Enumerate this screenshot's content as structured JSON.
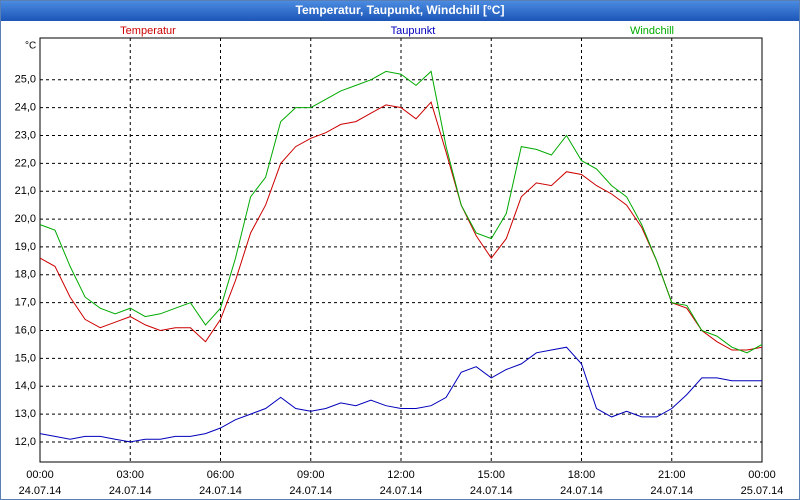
{
  "chart_data": {
    "type": "line",
    "title": "Temperatur, Taupunkt, Windchill [°C]",
    "y_unit": "°C",
    "x": [
      0,
      0.5,
      1,
      1.5,
      2,
      2.5,
      3,
      3.5,
      4,
      4.5,
      5,
      5.5,
      6,
      6.5,
      7,
      7.5,
      8,
      8.5,
      9,
      9.5,
      10,
      10.5,
      11,
      11.5,
      12,
      12.5,
      13,
      13.5,
      14,
      14.5,
      15,
      15.5,
      16,
      16.5,
      17,
      17.5,
      18,
      18.5,
      19,
      19.5,
      20,
      20.5,
      21,
      21.5,
      22,
      22.5,
      23,
      23.5,
      24
    ],
    "series": [
      {
        "name": "Temperatur",
        "color": "#cc0000",
        "values": [
          18.6,
          18.3,
          17.2,
          16.4,
          16.1,
          16.3,
          16.5,
          16.2,
          16.0,
          16.1,
          16.1,
          15.6,
          16.4,
          17.8,
          19.5,
          20.5,
          22.0,
          22.6,
          22.9,
          23.1,
          23.4,
          23.5,
          23.8,
          24.1,
          24.0,
          23.6,
          24.2,
          22.4,
          20.5,
          19.4,
          18.6,
          19.3,
          20.8,
          21.3,
          21.2,
          21.7,
          21.6,
          21.2,
          20.9,
          20.5,
          19.7,
          18.5,
          17.0,
          16.8,
          16.0,
          15.6,
          15.3,
          15.3,
          15.4
        ]
      },
      {
        "name": "Taupunkt",
        "color": "#0000bb",
        "values": [
          12.3,
          12.2,
          12.1,
          12.2,
          12.2,
          12.1,
          12.0,
          12.1,
          12.1,
          12.2,
          12.2,
          12.3,
          12.5,
          12.8,
          13.0,
          13.2,
          13.6,
          13.2,
          13.1,
          13.2,
          13.4,
          13.3,
          13.5,
          13.3,
          13.2,
          13.2,
          13.3,
          13.6,
          14.5,
          14.7,
          14.3,
          14.6,
          14.8,
          15.2,
          15.3,
          15.4,
          14.8,
          13.2,
          12.9,
          13.1,
          12.9,
          12.9,
          13.2,
          13.7,
          14.3,
          14.3,
          14.2,
          14.2,
          14.2
        ]
      },
      {
        "name": "Windchill",
        "color": "#00aa00",
        "values": [
          19.8,
          19.6,
          18.3,
          17.2,
          16.8,
          16.6,
          16.8,
          16.5,
          16.6,
          16.8,
          17.0,
          16.2,
          16.8,
          18.6,
          20.8,
          21.5,
          23.5,
          24.0,
          24.0,
          24.3,
          24.6,
          24.8,
          25.0,
          25.3,
          25.2,
          24.8,
          25.3,
          22.6,
          20.5,
          19.5,
          19.3,
          20.2,
          22.6,
          22.5,
          22.3,
          23.0,
          22.1,
          21.8,
          21.2,
          20.8,
          19.8,
          18.5,
          17.0,
          16.9,
          16.0,
          15.8,
          15.4,
          15.2,
          15.5
        ]
      }
    ],
    "xlim": [
      0,
      24
    ],
    "ylim": [
      11.28,
      26.5
    ],
    "xticks": [
      {
        "value": 0,
        "label": "00:00",
        "date": "24.07.14"
      },
      {
        "value": 3,
        "label": "03:00",
        "date": "24.07.14"
      },
      {
        "value": 6,
        "label": "06:00",
        "date": "24.07.14"
      },
      {
        "value": 9,
        "label": "09:00",
        "date": "24.07.14"
      },
      {
        "value": 12,
        "label": "12:00",
        "date": "24.07.14"
      },
      {
        "value": 15,
        "label": "15:00",
        "date": "24.07.14"
      },
      {
        "value": 18,
        "label": "18:00",
        "date": "24.07.14"
      },
      {
        "value": 21,
        "label": "21:00",
        "date": "24.07.14"
      },
      {
        "value": 24,
        "label": "00:00",
        "date": "25.07.14"
      }
    ],
    "yticks": [
      {
        "value": 12,
        "label": "12,0"
      },
      {
        "value": 13,
        "label": "13,0"
      },
      {
        "value": 14,
        "label": "14,0"
      },
      {
        "value": 15,
        "label": "15,0"
      },
      {
        "value": 16,
        "label": "16,0"
      },
      {
        "value": 17,
        "label": "17,0"
      },
      {
        "value": 18,
        "label": "18,0"
      },
      {
        "value": 19,
        "label": "19,0"
      },
      {
        "value": 20,
        "label": "20,0"
      },
      {
        "value": 21,
        "label": "21,0"
      },
      {
        "value": 22,
        "label": "22,0"
      },
      {
        "value": 23,
        "label": "23,0"
      },
      {
        "value": 24,
        "label": "24,0"
      },
      {
        "value": 25,
        "label": "25,0"
      }
    ],
    "grid": true
  }
}
